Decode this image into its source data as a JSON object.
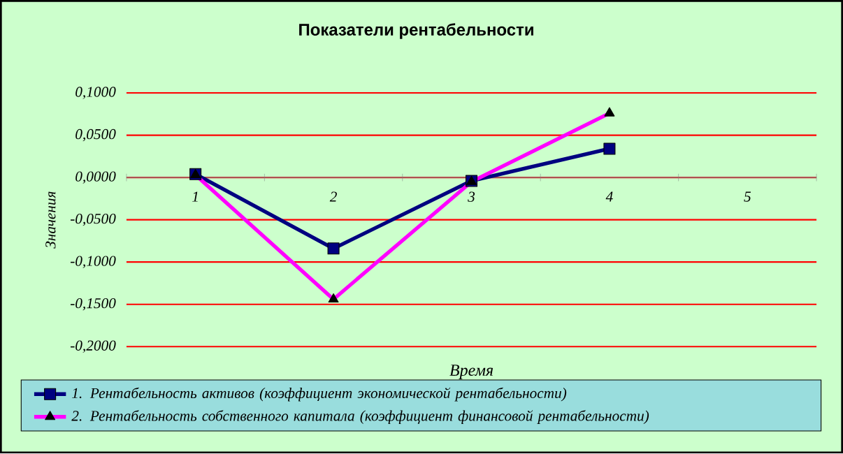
{
  "chart_data": {
    "type": "line",
    "title": "Показатели  рентабельности",
    "xlabel": "Время",
    "ylabel": "Значения",
    "categories": [
      "1",
      "2",
      "3",
      "4",
      "5"
    ],
    "series": [
      {
        "name": "1. Рентабельность активов (коэффициент экономической рентабельности)",
        "color": "#000080",
        "marker": "square",
        "values": [
          0.004,
          -0.084,
          -0.004,
          0.034,
          null
        ]
      },
      {
        "name": "2. Рентабельность собственного  капитала (коэффициент финансовой рентабельности)",
        "color": "#ff00ff",
        "marker": "triangle",
        "values": [
          0.003,
          -0.144,
          -0.005,
          0.076,
          null
        ]
      }
    ],
    "ylim": [
      -0.2,
      0.1
    ],
    "yticks": [
      {
        "value": -0.2,
        "label": "-0,2000"
      },
      {
        "value": -0.15,
        "label": "-0,1500"
      },
      {
        "value": -0.1,
        "label": "-0,1000"
      },
      {
        "value": -0.05,
        "label": "-0,0500"
      },
      {
        "value": 0,
        "label": "0,0000"
      },
      {
        "value": 0.05,
        "label": "0,0500"
      },
      {
        "value": 0.1,
        "label": "0,1000"
      }
    ],
    "grid": "y",
    "legend": "bottom",
    "line_style": "solid"
  }
}
